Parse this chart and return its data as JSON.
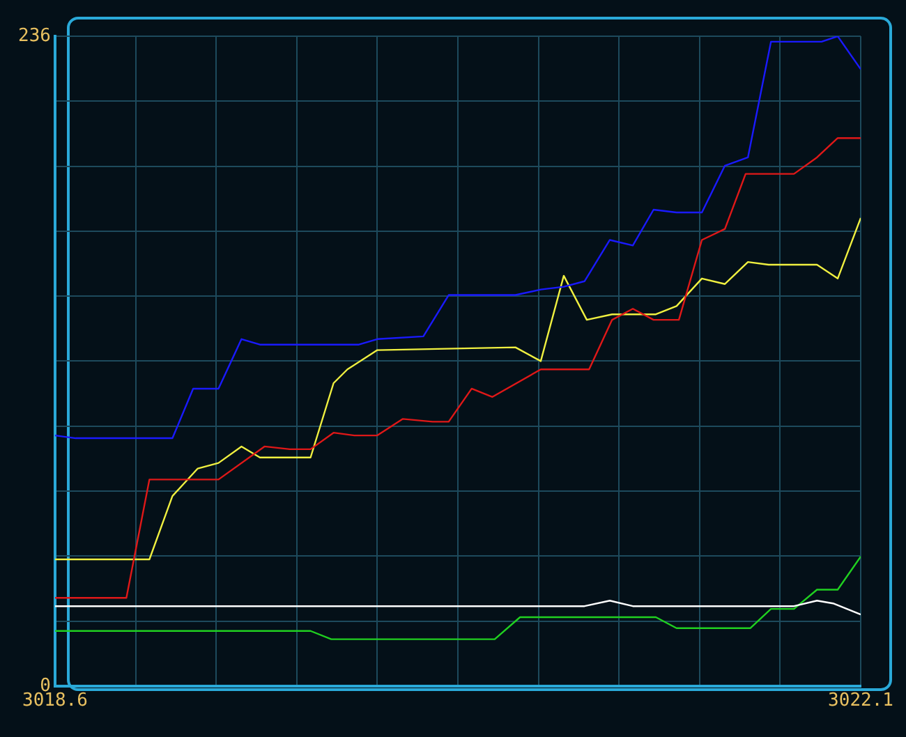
{
  "chart_data": {
    "type": "line",
    "xlim": [
      3018.6,
      3022.1
    ],
    "xticks": [
      3018.6,
      {
        "value": 3018.95,
        "label": null
      },
      {
        "value": 3019.3,
        "label": null
      },
      {
        "value": 3019.65,
        "label": null
      },
      {
        "value": 3020.0,
        "label": null
      },
      {
        "value": 3020.35,
        "label": null
      },
      {
        "value": 3020.7,
        "label": null
      },
      {
        "value": 3021.05,
        "label": null
      },
      {
        "value": 3021.4,
        "label": null
      },
      {
        "value": 3021.75,
        "label": null
      },
      3022.1
    ],
    "ylim": [
      0,
      236
    ],
    "yticks": [
      0,
      {
        "value": 23.6,
        "label": null
      },
      {
        "value": 47.2,
        "label": null
      },
      {
        "value": 70.8,
        "label": null
      },
      {
        "value": 94.4,
        "label": null
      },
      {
        "value": 118,
        "label": null
      },
      {
        "value": 141.6,
        "label": null
      },
      {
        "value": 165.2,
        "label": null
      },
      {
        "value": 188.8,
        "label": null
      },
      {
        "value": 212.4,
        "label": null
      },
      236
    ],
    "grid": true,
    "legend": false,
    "marker": "none",
    "line_style": "solid",
    "series": [
      {
        "color": "#1a1aff",
        "x": [
          3018.6,
          3018.69,
          3019.11,
          3019.2,
          3019.31,
          3019.41,
          3019.49,
          3019.92,
          3020.0,
          3020.2,
          3020.31,
          3020.6,
          3020.71,
          3020.81,
          3020.9,
          3021.01,
          3021.11,
          3021.2,
          3021.3,
          3021.41,
          3021.51,
          3021.61,
          3021.71,
          3021.93,
          3022.0,
          3022.1
        ],
        "values": [
          91,
          90,
          90,
          108,
          108,
          126,
          124,
          124,
          126,
          127,
          142,
          142,
          144,
          145,
          147,
          162,
          160,
          173,
          172,
          172,
          189,
          192,
          234,
          234,
          236,
          224
        ]
      },
      {
        "color": "#e01818",
        "x": [
          3018.6,
          3018.91,
          3019.01,
          3019.31,
          3019.51,
          3019.62,
          3019.71,
          3019.81,
          3019.9,
          3020.0,
          3020.11,
          3020.24,
          3020.31,
          3020.41,
          3020.5,
          3020.71,
          3020.92,
          3021.02,
          3021.11,
          3021.2,
          3021.31,
          3021.41,
          3021.51,
          3021.6,
          3021.81,
          3021.91,
          3022.0,
          3022.1
        ],
        "values": [
          32,
          32,
          75,
          75,
          87,
          86,
          86,
          92,
          91,
          91,
          97,
          96,
          96,
          108,
          105,
          115,
          115,
          133,
          137,
          133,
          133,
          162,
          166,
          186,
          186,
          192,
          199,
          199
        ]
      },
      {
        "color": "#f0f040",
        "x": [
          3018.6,
          3019.01,
          3019.11,
          3019.22,
          3019.31,
          3019.41,
          3019.49,
          3019.71,
          3019.81,
          3019.87,
          3020.0,
          3020.6,
          3020.71,
          3020.81,
          3020.91,
          3021.02,
          3021.21,
          3021.3,
          3021.41,
          3021.51,
          3021.61,
          3021.7,
          3021.91,
          3022.0,
          3022.1
        ],
        "values": [
          46,
          46,
          69,
          79,
          81,
          87,
          83,
          83,
          110,
          115,
          122,
          123,
          118,
          149,
          133,
          135,
          135,
          138,
          148,
          146,
          154,
          153,
          153,
          148,
          170
        ]
      },
      {
        "color": "#ffffff",
        "x": [
          3018.6,
          3020.9,
          3021.01,
          3021.11,
          3021.81,
          3021.91,
          3021.98,
          3022.1
        ],
        "values": [
          29,
          29,
          31,
          29,
          29,
          31,
          30,
          26
        ]
      },
      {
        "color": "#20d020",
        "x": [
          3018.6,
          3019.71,
          3019.8,
          3020.51,
          3020.62,
          3021.21,
          3021.3,
          3021.62,
          3021.71,
          3021.81,
          3021.91,
          3022.0,
          3022.1
        ],
        "values": [
          20,
          20,
          17,
          17,
          25,
          25,
          21,
          21,
          28,
          28,
          35,
          35,
          47
        ]
      }
    ]
  }
}
